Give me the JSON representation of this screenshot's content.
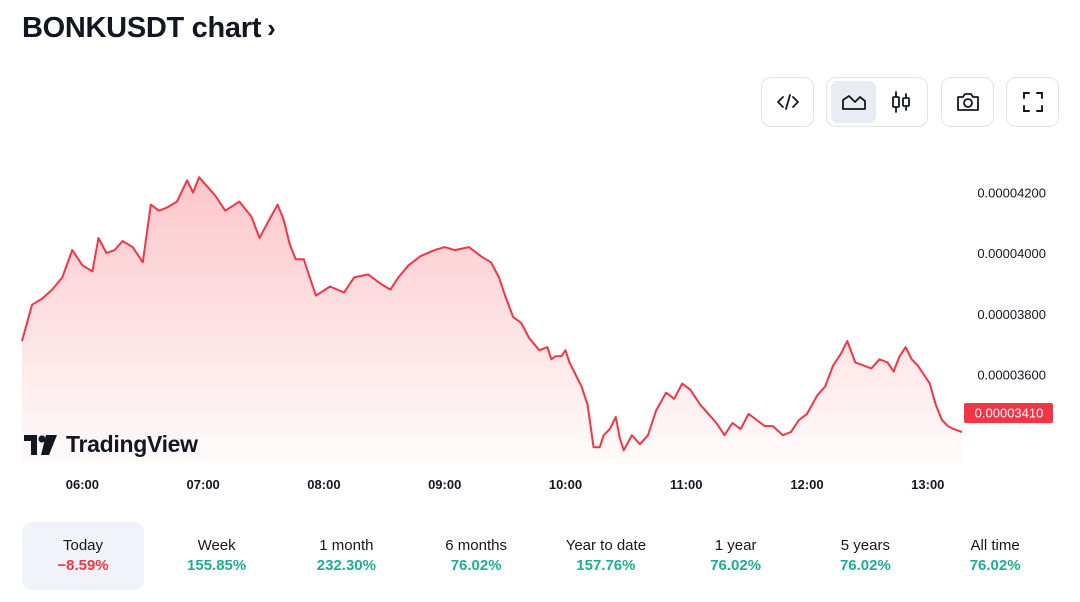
{
  "header": {
    "title": "BONKUSDT chart",
    "chevron": "›"
  },
  "toolbar": {
    "buttons": [
      {
        "name": "embed-code",
        "icon": "code-icon"
      },
      {
        "name": "area-chart",
        "icon": "area-chart-icon",
        "active": true
      },
      {
        "name": "candles",
        "icon": "candlestick-icon"
      },
      {
        "name": "snapshot",
        "icon": "camera-icon"
      },
      {
        "name": "fullscreen",
        "icon": "fullscreen-icon"
      }
    ]
  },
  "branding": {
    "logo_text": "TradingView"
  },
  "chart_data": {
    "type": "area",
    "x_labels": [
      "06:00",
      "07:00",
      "08:00",
      "09:00",
      "10:00",
      "11:00",
      "12:00",
      "13:00"
    ],
    "y_ticks": [
      4.2e-05,
      4e-05,
      3.8e-05,
      3.6e-05
    ],
    "y_tick_labels": [
      "0.00004200",
      "0.00004000",
      "0.00003800",
      "0.00003600"
    ],
    "ylim": [
      3.305e-05,
      4.34e-05
    ],
    "x_range": [
      "05:30",
      "13:17"
    ],
    "last_price": 3.41e-05,
    "last_price_label": "0.00003410",
    "series": [
      {
        "color": "#f23645",
        "points": [
          [
            "05:30",
            3.71e-05
          ],
          [
            "05:35",
            3.83e-05
          ],
          [
            "05:40",
            3.85e-05
          ],
          [
            "05:45",
            3.88e-05
          ],
          [
            "05:50",
            3.92e-05
          ],
          [
            "05:55",
            4.01e-05
          ],
          [
            "06:00",
            3.96e-05
          ],
          [
            "06:05",
            3.94e-05
          ],
          [
            "06:08",
            4.05e-05
          ],
          [
            "06:12",
            4e-05
          ],
          [
            "06:16",
            4.01e-05
          ],
          [
            "06:20",
            4.04e-05
          ],
          [
            "06:25",
            4.02e-05
          ],
          [
            "06:30",
            3.97e-05
          ],
          [
            "06:34",
            4.16e-05
          ],
          [
            "06:38",
            4.14e-05
          ],
          [
            "06:42",
            4.15e-05
          ],
          [
            "06:47",
            4.17e-05
          ],
          [
            "06:52",
            4.24e-05
          ],
          [
            "06:55",
            4.2e-05
          ],
          [
            "06:58",
            4.25e-05
          ],
          [
            "07:02",
            4.22e-05
          ],
          [
            "07:06",
            4.19e-05
          ],
          [
            "07:11",
            4.14e-05
          ],
          [
            "07:18",
            4.17e-05
          ],
          [
            "07:24",
            4.12e-05
          ],
          [
            "07:28",
            4.05e-05
          ],
          [
            "07:32",
            4.1e-05
          ],
          [
            "07:37",
            4.16e-05
          ],
          [
            "07:40",
            4.11e-05
          ],
          [
            "07:43",
            4.03e-05
          ],
          [
            "07:46",
            3.98e-05
          ],
          [
            "07:50",
            3.98e-05
          ],
          [
            "07:53",
            3.92e-05
          ],
          [
            "07:56",
            3.86e-05
          ],
          [
            "08:03",
            3.89e-05
          ],
          [
            "08:10",
            3.87e-05
          ],
          [
            "08:15",
            3.92e-05
          ],
          [
            "08:22",
            3.93e-05
          ],
          [
            "08:28",
            3.9e-05
          ],
          [
            "08:33",
            3.88e-05
          ],
          [
            "08:37",
            3.92e-05
          ],
          [
            "08:42",
            3.96e-05
          ],
          [
            "08:48",
            3.99e-05
          ],
          [
            "08:55",
            4.01e-05
          ],
          [
            "09:00",
            4.02e-05
          ],
          [
            "09:05",
            4.01e-05
          ],
          [
            "09:12",
            4.02e-05
          ],
          [
            "09:18",
            3.99e-05
          ],
          [
            "09:23",
            3.97e-05
          ],
          [
            "09:27",
            3.92e-05
          ],
          [
            "09:30",
            3.86e-05
          ],
          [
            "09:34",
            3.79e-05
          ],
          [
            "09:38",
            3.77e-05
          ],
          [
            "09:42",
            3.72e-05
          ],
          [
            "09:47",
            3.68e-05
          ],
          [
            "09:51",
            3.69e-05
          ],
          [
            "09:53",
            3.65e-05
          ],
          [
            "09:55",
            3.66e-05
          ],
          [
            "09:58",
            3.66e-05
          ],
          [
            "10:00",
            3.68e-05
          ],
          [
            "10:02",
            3.64e-05
          ],
          [
            "10:05",
            3.6e-05
          ],
          [
            "10:08",
            3.56e-05
          ],
          [
            "10:11",
            3.5e-05
          ],
          [
            "10:14",
            3.36e-05
          ],
          [
            "10:17",
            3.36e-05
          ],
          [
            "10:19",
            3.4e-05
          ],
          [
            "10:22",
            3.42e-05
          ],
          [
            "10:25",
            3.46e-05
          ],
          [
            "10:27",
            3.39e-05
          ],
          [
            "10:29",
            3.35e-05
          ],
          [
            "10:33",
            3.4e-05
          ],
          [
            "10:37",
            3.37e-05
          ],
          [
            "10:41",
            3.4e-05
          ],
          [
            "10:45",
            3.48e-05
          ],
          [
            "10:50",
            3.54e-05
          ],
          [
            "10:54",
            3.52e-05
          ],
          [
            "10:58",
            3.57e-05
          ],
          [
            "11:02",
            3.55e-05
          ],
          [
            "11:07",
            3.5e-05
          ],
          [
            "11:11",
            3.47e-05
          ],
          [
            "11:15",
            3.44e-05
          ],
          [
            "11:19",
            3.4e-05
          ],
          [
            "11:23",
            3.44e-05
          ],
          [
            "11:27",
            3.42e-05
          ],
          [
            "11:31",
            3.47e-05
          ],
          [
            "11:35",
            3.45e-05
          ],
          [
            "11:39",
            3.43e-05
          ],
          [
            "11:43",
            3.43e-05
          ],
          [
            "11:48",
            3.4e-05
          ],
          [
            "11:52",
            3.41e-05
          ],
          [
            "11:56",
            3.45e-05
          ],
          [
            "12:00",
            3.47e-05
          ],
          [
            "12:05",
            3.53e-05
          ],
          [
            "12:09",
            3.56e-05
          ],
          [
            "12:13",
            3.63e-05
          ],
          [
            "12:17",
            3.67e-05
          ],
          [
            "12:20",
            3.71e-05
          ],
          [
            "12:24",
            3.64e-05
          ],
          [
            "12:28",
            3.63e-05
          ],
          [
            "12:32",
            3.62e-05
          ],
          [
            "12:36",
            3.65e-05
          ],
          [
            "12:40",
            3.64e-05
          ],
          [
            "12:43",
            3.61e-05
          ],
          [
            "12:46",
            3.66e-05
          ],
          [
            "12:49",
            3.69e-05
          ],
          [
            "12:52",
            3.65e-05
          ],
          [
            "12:55",
            3.63e-05
          ],
          [
            "12:58",
            3.6e-05
          ],
          [
            "13:01",
            3.57e-05
          ],
          [
            "13:04",
            3.5e-05
          ],
          [
            "13:07",
            3.45e-05
          ],
          [
            "13:10",
            3.43e-05
          ],
          [
            "13:13",
            3.42e-05
          ],
          [
            "13:17",
            3.41e-05
          ]
        ]
      }
    ]
  },
  "ranges": [
    {
      "label": "Today",
      "value": "−8.59%",
      "trend": "negative",
      "active": true
    },
    {
      "label": "Week",
      "value": "155.85%",
      "trend": "positive"
    },
    {
      "label": "1 month",
      "value": "232.30%",
      "trend": "positive"
    },
    {
      "label": "6 months",
      "value": "76.02%",
      "trend": "positive"
    },
    {
      "label": "Year to date",
      "value": "157.76%",
      "trend": "positive"
    },
    {
      "label": "1 year",
      "value": "76.02%",
      "trend": "positive"
    },
    {
      "label": "5 years",
      "value": "76.02%",
      "trend": "positive"
    },
    {
      "label": "All time",
      "value": "76.02%",
      "trend": "positive"
    }
  ]
}
